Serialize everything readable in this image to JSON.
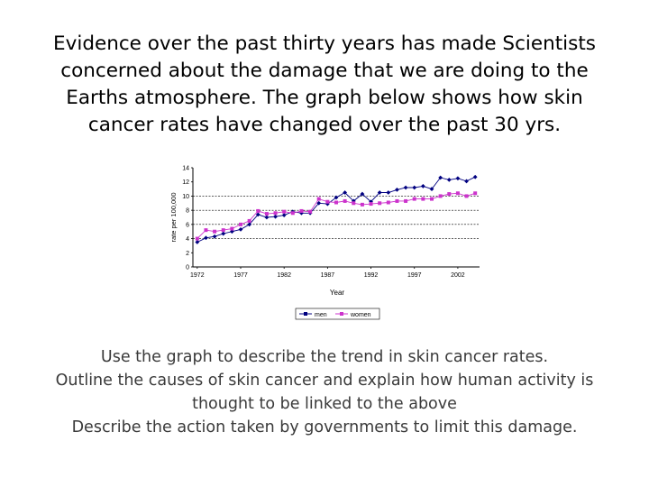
{
  "intro": {
    "lines": [
      "Evidence over the past thirty years has made Scientists",
      "concerned about the damage that we are doing to the",
      "Earths atmosphere. The graph below shows how skin",
      "cancer rates have changed over the past 30 yrs."
    ]
  },
  "questions": {
    "q1": "Use the graph to describe the trend in skin cancer rates.",
    "q2a": "Outline the causes of skin cancer and explain how human activity is",
    "q2b": "thought to be linked to the above",
    "q3": "Describe the action taken by governments to limit this damage."
  },
  "colors": {
    "men": "#000080",
    "women": "#cc33cc",
    "grid": "#000000"
  },
  "chart_data": {
    "type": "line",
    "title": "",
    "xlabel": "Year",
    "ylabel": "rate per 100,000",
    "x_ticks": [
      1972,
      1977,
      1982,
      1987,
      1992,
      1997,
      2002
    ],
    "x_tick_labels": [
      "1972",
      "1977",
      "1982",
      "1987",
      "1992",
      "1997",
      "2002"
    ],
    "y_ticks": [
      0,
      2,
      4,
      6,
      8,
      10,
      12,
      14
    ],
    "y_tick_labels": [
      "0",
      "2",
      "4",
      "6",
      "8",
      "10",
      "12",
      "14"
    ],
    "xlim": [
      1971.5,
      2004.5
    ],
    "ylim": [
      0,
      14
    ],
    "gridlines_y": [
      4,
      6,
      8,
      10
    ],
    "legend": {
      "position": "bottom",
      "labels": [
        "men",
        "women"
      ]
    },
    "x": [
      1972,
      1973,
      1974,
      1975,
      1976,
      1977,
      1978,
      1979,
      1980,
      1981,
      1982,
      1983,
      1984,
      1985,
      1986,
      1987,
      1988,
      1989,
      1990,
      1991,
      1992,
      1993,
      1994,
      1995,
      1996,
      1997,
      1998,
      1999,
      2000,
      2001,
      2002,
      2003,
      2004
    ],
    "series": [
      {
        "name": "men",
        "values": [
          3.5,
          4.1,
          4.3,
          4.7,
          5.0,
          5.3,
          6.0,
          7.4,
          7.0,
          7.1,
          7.3,
          7.8,
          7.6,
          7.6,
          9.0,
          8.9,
          9.8,
          10.5,
          9.3,
          10.3,
          9.2,
          10.5,
          10.5,
          10.9,
          11.2,
          11.2,
          11.4,
          11.0,
          12.6,
          12.3,
          12.5,
          12.1,
          12.7
        ]
      },
      {
        "name": "women",
        "values": [
          4.0,
          5.2,
          5.0,
          5.2,
          5.4,
          6.0,
          6.5,
          7.9,
          7.5,
          7.6,
          7.8,
          7.6,
          7.9,
          7.8,
          9.6,
          9.2,
          9.1,
          9.3,
          9.0,
          8.8,
          8.9,
          9.0,
          9.1,
          9.3,
          9.3,
          9.6,
          9.6,
          9.6,
          10.0,
          10.3,
          10.4,
          10.0,
          10.4
        ]
      }
    ]
  }
}
